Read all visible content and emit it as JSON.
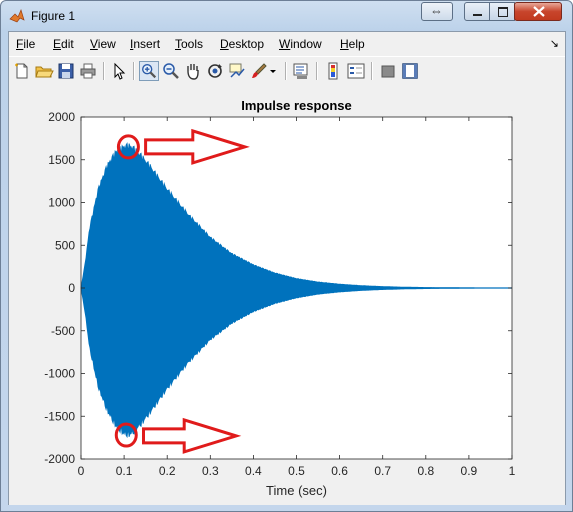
{
  "window": {
    "title": "Figure 1",
    "caption_swap_glyph": "⇔"
  },
  "menubar": {
    "items": [
      {
        "label": "File",
        "u": "F",
        "rest": "ile"
      },
      {
        "label": "Edit",
        "u": "E",
        "rest": "dit"
      },
      {
        "label": "View",
        "u": "V",
        "rest": "iew"
      },
      {
        "label": "Insert",
        "u": "I",
        "rest": "nsert"
      },
      {
        "label": "Tools",
        "u": "T",
        "rest": "ools"
      },
      {
        "label": "Desktop",
        "u": "D",
        "rest": "esktop"
      },
      {
        "label": "Window",
        "u": "W",
        "rest": "indow"
      },
      {
        "label": "Help",
        "u": "H",
        "rest": "elp"
      }
    ],
    "dock_glyph": "↘"
  },
  "toolbar": {
    "icons": [
      "new-figure-icon",
      "open-file-icon",
      "save-icon",
      "print-icon",
      "edit-plot-arrow-icon",
      "zoom-in-icon",
      "zoom-out-icon",
      "pan-hand-icon",
      "rotate-3d-icon",
      "data-cursor-icon",
      "brush-icon",
      "brush-dropdown-icon",
      "link-plot-icon",
      "insert-colorbar-icon",
      "insert-legend-icon",
      "hide-plot-tools-icon",
      "show-plot-tools-icon"
    ]
  },
  "colors": {
    "signal": "#0072BD",
    "annotation": "#E01B1B"
  },
  "chart_data": {
    "type": "line",
    "title": "Impulse response",
    "xlabel": "Time (sec)",
    "ylabel": "",
    "xlim": [
      0,
      1
    ],
    "ylim": [
      -2000,
      2000
    ],
    "xticks": [
      0,
      0.1,
      0.2,
      0.3,
      0.4,
      0.5,
      0.6,
      0.7,
      0.8,
      0.9,
      1
    ],
    "xtick_labels": [
      "0",
      "0.1",
      "0.2",
      "0.3",
      "0.4",
      "0.5",
      "0.6",
      "0.7",
      "0.8",
      "0.9",
      "1"
    ],
    "yticks": [
      2000,
      1500,
      1000,
      500,
      0,
      -500,
      -1000,
      -1500,
      -2000
    ],
    "ytick_labels": [
      "2000",
      "1500",
      "1000",
      "500",
      "0",
      "-500",
      "-1000",
      "-1500",
      "-2000"
    ],
    "envelope": {
      "description_points_x": [
        0,
        0.01,
        0.02,
        0.04,
        0.06,
        0.08,
        0.1,
        0.11,
        0.12,
        0.14,
        0.16,
        0.2,
        0.25,
        0.3,
        0.35,
        0.4,
        0.45,
        0.5,
        0.55,
        0.6,
        0.65,
        0.7,
        0.75,
        0.8,
        0.85,
        0.9,
        1.0
      ],
      "upper": [
        0,
        300,
        700,
        1150,
        1420,
        1580,
        1650,
        1660,
        1640,
        1540,
        1420,
        1150,
        850,
        590,
        400,
        270,
        175,
        110,
        70,
        45,
        28,
        17,
        10,
        6,
        4,
        2,
        0
      ],
      "lower": [
        0,
        -300,
        -700,
        -1150,
        -1420,
        -1600,
        -1700,
        -1710,
        -1690,
        -1580,
        -1450,
        -1170,
        -860,
        -600,
        -410,
        -275,
        -180,
        -115,
        -72,
        -46,
        -29,
        -18,
        -11,
        -7,
        -4,
        -2,
        0
      ]
    },
    "annotations": [
      {
        "type": "circle",
        "x": 0.11,
        "y": 1650
      },
      {
        "type": "arrow",
        "x_from": 0.15,
        "x_to": 0.38,
        "y": 1650
      },
      {
        "type": "circle",
        "x": 0.105,
        "y": -1720
      },
      {
        "type": "arrow",
        "x_from": 0.145,
        "x_to": 0.36,
        "y": -1730
      }
    ]
  }
}
